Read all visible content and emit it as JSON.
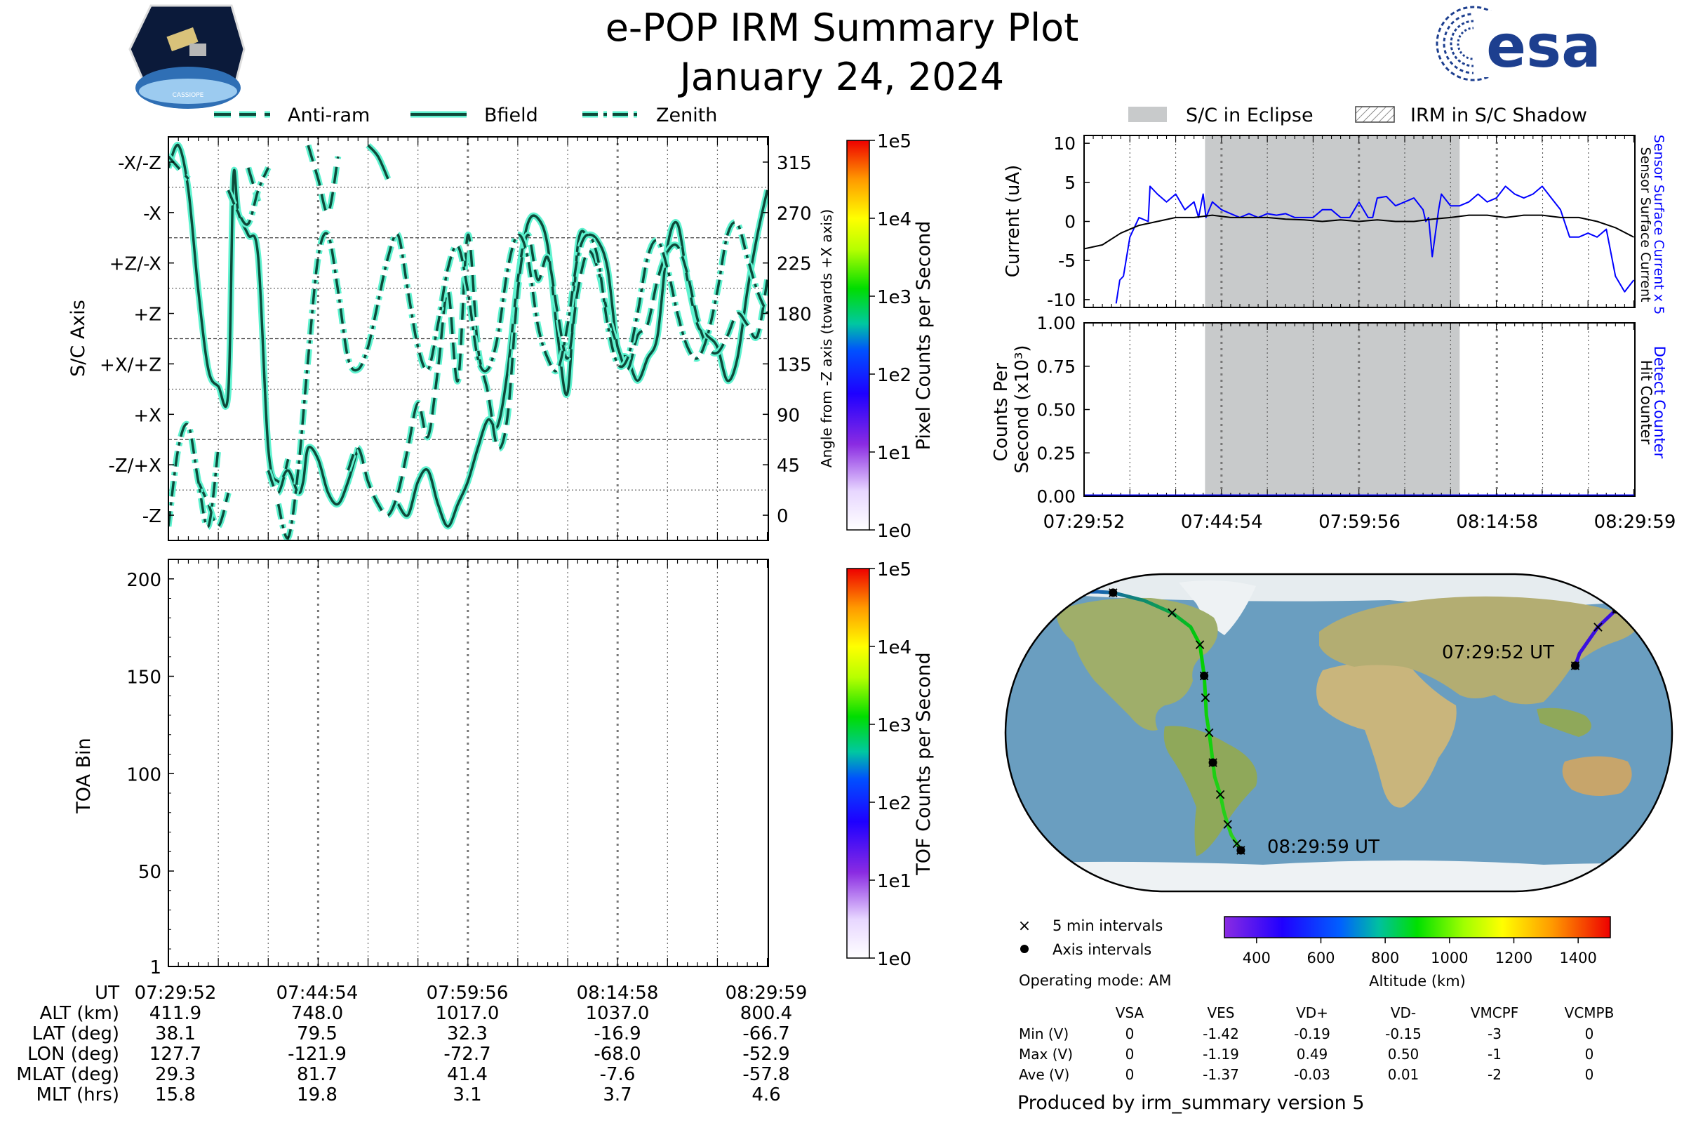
{
  "header": {
    "title": "e-POP IRM Summary Plot",
    "date": "January 24, 2024",
    "mission_logo_label": "CASSIOPE",
    "agency_logo_text": "esa"
  },
  "legend_left": {
    "items": [
      {
        "label": "Anti-ram",
        "style": "dashed"
      },
      {
        "label": "Bfield",
        "style": "solid"
      },
      {
        "label": "Zenith",
        "style": "dashdot"
      }
    ]
  },
  "legend_right": {
    "items": [
      {
        "label": "S/C in Eclipse",
        "style": "gray-fill"
      },
      {
        "label": "IRM in S/C Shadow",
        "style": "hatch"
      }
    ]
  },
  "colors": {
    "curve_glow": "#5ef2cf",
    "curve_core": "#0d4a3a",
    "eclipse": "#c8cacb",
    "current_scaled": "#0000ff",
    "current_raw": "#000000",
    "ocean": "#6a9ec0",
    "land": "#b5b27a"
  },
  "times": [
    "07:29:52",
    "07:44:54",
    "07:59:56",
    "08:14:58",
    "08:29:59"
  ],
  "chart_data": [
    {
      "id": "attitude",
      "type": "line",
      "ylabel": "S/C Axis",
      "ylabel_right": "Angle from -Z axis (towards +X axis)",
      "y_ticks_left": [
        "-Z",
        "-Z/+X",
        "+X",
        "+X/+Z",
        "+Z",
        "+Z/-X",
        "-X",
        "-X/-Z"
      ],
      "y_ticks_right": [
        0,
        45,
        90,
        135,
        180,
        225,
        270,
        315
      ],
      "ylim": [
        -22.5,
        337.5
      ],
      "xlim_min": [
        0,
        60.1
      ],
      "series": [
        {
          "name": "Bfield",
          "style": "solid",
          "x": [
            0,
            1,
            2,
            3,
            4,
            5,
            6,
            6.5,
            7,
            8,
            9,
            10,
            11,
            12,
            13,
            13.5,
            14,
            15,
            16,
            17,
            18,
            19,
            20,
            21,
            22,
            23,
            24,
            25,
            26,
            27,
            28,
            29,
            30,
            31,
            32,
            33,
            34,
            35,
            36,
            37,
            38,
            39,
            40,
            41,
            42,
            43,
            44,
            45,
            46,
            47,
            48,
            49,
            50,
            51,
            52,
            53,
            54,
            55,
            56,
            57,
            58,
            59,
            60
          ],
          "y": [
            310,
            330,
            290,
            200,
            130,
            115,
            110,
            300,
            270,
            250,
            230,
            60,
            30,
            40,
            20,
            30,
            60,
            50,
            20,
            10,
            30,
            60,
            330,
            320,
            300,
            10,
            0,
            30,
            40,
            10,
            -10,
            10,
            30,
            60,
            85,
            80,
            130,
            210,
            260,
            265,
            240,
            160,
            110,
            240,
            250,
            245,
            220,
            150,
            140,
            120,
            140,
            160,
            240,
            260,
            210,
            170,
            160,
            150,
            120,
            140,
            200,
            250,
            290
          ]
        },
        {
          "name": "Anti-ram",
          "style": "dashed",
          "x": [
            0,
            2,
            3,
            4,
            5,
            6,
            8,
            9,
            10,
            11,
            12,
            14,
            15,
            16,
            17,
            18,
            19,
            20,
            21,
            22,
            23,
            24,
            25,
            26,
            27,
            28,
            29,
            30,
            31,
            32,
            33,
            34,
            35,
            36,
            37,
            38,
            39,
            40,
            41,
            42,
            43,
            44,
            45,
            46,
            47,
            48,
            49,
            50,
            51,
            52,
            53,
            54,
            55,
            56,
            57,
            58,
            59,
            60
          ],
          "y": [
            320,
            300,
            30,
            10,
            -10,
            20,
            310,
            280,
            40,
            20,
            50,
            330,
            300,
            270,
            320,
            40,
            60,
            30,
            10,
            0,
            20,
            60,
            100,
            70,
            130,
            200,
            120,
            250,
            150,
            110,
            60,
            90,
            200,
            250,
            210,
            230,
            180,
            140,
            200,
            235,
            220,
            180,
            150,
            130,
            160,
            170,
            210,
            235,
            240,
            215,
            175,
            150,
            145,
            160,
            180,
            170,
            160,
            210
          ]
        },
        {
          "name": "Zenith",
          "style": "dashdot",
          "x": [
            0,
            1,
            2,
            3,
            4,
            5,
            6,
            7,
            8,
            9,
            10,
            11,
            12,
            13,
            14,
            15,
            16,
            17,
            18,
            19,
            20,
            21,
            22,
            23,
            24,
            25,
            26,
            27,
            28,
            29,
            30,
            31,
            32,
            33,
            34,
            35,
            36,
            37,
            38,
            39,
            40,
            41,
            42,
            43,
            44,
            45,
            46,
            47,
            48,
            49,
            50,
            51,
            52,
            53,
            54,
            55,
            56,
            57,
            58,
            59,
            60
          ],
          "y": [
            -10,
            60,
            80,
            30,
            -10,
            60,
            290,
            270,
            260,
            290,
            310,
            10,
            -20,
            40,
            140,
            230,
            250,
            200,
            140,
            130,
            150,
            190,
            230,
            250,
            200,
            150,
            130,
            170,
            220,
            240,
            200,
            140,
            130,
            160,
            220,
            250,
            230,
            170,
            140,
            130,
            170,
            230,
            250,
            230,
            170,
            135,
            140,
            180,
            230,
            245,
            220,
            180,
            150,
            140,
            160,
            200,
            250,
            260,
            230,
            200,
            180
          ]
        }
      ],
      "colorbar": {
        "label": "Pixel Counts per Second",
        "ticks": [
          "1e0",
          "1e1",
          "1e2",
          "1e3",
          "1e4",
          "1e5"
        ],
        "scale": "log"
      }
    },
    {
      "id": "toa",
      "type": "heatmap",
      "ylabel": "TOA Bin",
      "y_ticks": [
        1,
        50,
        100,
        150,
        200
      ],
      "ylim": [
        1,
        210
      ],
      "values": [],
      "colorbar": {
        "label": "TOF Counts per Second",
        "ticks": [
          "1e0",
          "1e1",
          "1e2",
          "1e3",
          "1e4",
          "1e5"
        ],
        "scale": "log"
      }
    },
    {
      "id": "current",
      "type": "line",
      "ylabel": "Current (uA)",
      "y_ticks": [
        -10,
        -5,
        0,
        5,
        10
      ],
      "ylim": [
        -11,
        11
      ],
      "eclipse_range_min": [
        13.2,
        41.0
      ],
      "series": [
        {
          "name": "Sensor Surface Current x 5",
          "color": "#0000ff",
          "x": [
            3.5,
            3.9,
            4.3,
            5.0,
            6.0,
            7.0,
            7.2,
            8.0,
            9.0,
            10.0,
            11.0,
            12.0,
            12.5,
            13.0,
            13.3,
            14.0,
            15.0,
            16.0,
            17.0,
            18.0,
            19.0,
            20.0,
            21.0,
            22.0,
            23.0,
            24.0,
            25.0,
            26.0,
            27.0,
            28.0,
            29.0,
            30.0,
            31.0,
            31.5,
            32.0,
            33.0,
            34.0,
            35.0,
            36.0,
            37.0,
            37.3,
            37.6,
            38.0,
            38.7,
            39.0,
            40.0,
            41.0,
            42.0,
            43.0,
            44.0,
            45.0,
            46.0,
            47.0,
            48.0,
            49.0,
            50.0,
            51.0,
            52.0,
            53.0,
            54.0,
            55.0,
            56.0,
            57.0,
            58.0,
            59.0,
            60.0
          ],
          "y": [
            -10.5,
            -7.5,
            -7.0,
            -2.0,
            0.5,
            0.0,
            4.5,
            3.5,
            2.5,
            3.5,
            1.5,
            2.5,
            0.5,
            3.5,
            0.5,
            2.5,
            1.5,
            1.0,
            0.5,
            1.0,
            0.5,
            1.0,
            0.8,
            1.0,
            0.5,
            0.5,
            0.5,
            1.5,
            1.5,
            0.5,
            0.5,
            2.5,
            0.5,
            0.5,
            3.0,
            3.2,
            2.0,
            2.5,
            3.0,
            1.5,
            0.0,
            0.5,
            -4.5,
            1.5,
            3.5,
            2.0,
            2.0,
            2.5,
            3.5,
            2.5,
            3.0,
            4.5,
            3.5,
            3.0,
            3.5,
            4.5,
            3.0,
            1.5,
            -2.0,
            -2.0,
            -1.5,
            -2.0,
            -1.0,
            -7.0,
            -9.0,
            -7.5
          ]
        },
        {
          "name": "Sensor Surface Current",
          "color": "#000000",
          "x": [
            0,
            2,
            4,
            6,
            8,
            10,
            12,
            14,
            16,
            18,
            20,
            22,
            24,
            26,
            28,
            30,
            32,
            34,
            36,
            38,
            40,
            42,
            44,
            46,
            48,
            50,
            52,
            54,
            56,
            58,
            60
          ],
          "y": [
            -3.5,
            -3.0,
            -1.5,
            -0.5,
            0.0,
            0.5,
            0.5,
            0.8,
            0.5,
            0.5,
            0.5,
            0.3,
            0.2,
            0.0,
            0.2,
            0.0,
            0.2,
            0.0,
            0.0,
            0.3,
            0.5,
            0.8,
            0.8,
            0.5,
            0.8,
            0.8,
            0.5,
            0.5,
            0.0,
            -0.8,
            -2.0
          ]
        }
      ]
    },
    {
      "id": "counts",
      "type": "line",
      "ylabel": "Counts Per Second (x10³)",
      "y_ticks": [
        "0.00",
        "0.25",
        "0.50",
        "0.75",
        "1.00"
      ],
      "ylim": [
        0,
        1
      ],
      "series": [
        {
          "name": "Detect Counter",
          "color": "#0000ff",
          "x": [
            0,
            60
          ],
          "y": [
            0,
            0
          ]
        },
        {
          "name": "Hit Counter",
          "color": "#000000",
          "x": [
            0,
            60
          ],
          "y": [
            0,
            0
          ]
        }
      ]
    },
    {
      "id": "track",
      "type": "scatter",
      "x_label": "Longitude",
      "y_label": "Latitude",
      "x": [
        127.7,
        130,
        140,
        150,
        165,
        180,
        -165,
        -150,
        -140,
        -130,
        -121.9,
        -105,
        -90,
        -80,
        -75,
        -72.7,
        -72,
        -71.5,
        -70,
        -69,
        -68.0,
        -67,
        -64,
        -62,
        -60,
        -58,
        -55,
        -52.9
      ],
      "y": [
        38.1,
        45,
        60,
        70,
        75,
        77,
        79,
        80,
        80,
        80,
        79.5,
        75,
        68,
        60,
        50,
        32.3,
        20,
        10,
        0,
        -8,
        -16.9,
        -25,
        -35,
        -45,
        -52,
        -58,
        -63,
        -66.7
      ],
      "start_label": "07:29:52 UT",
      "end_label": "08:29:59 UT",
      "colorbar": {
        "label": "Altitude (km)",
        "ticks": [
          400,
          600,
          800,
          1000,
          1200,
          1400
        ],
        "range": [
          300,
          1500
        ]
      }
    }
  ],
  "map_legend": {
    "five_min": "5 min intervals",
    "axis": "Axis intervals"
  },
  "ephemeris": {
    "rows": [
      {
        "label": "UT",
        "values": [
          "07:29:52",
          "07:44:54",
          "07:59:56",
          "08:14:58",
          "08:29:59"
        ]
      },
      {
        "label": "ALT (km)",
        "values": [
          "411.9",
          "748.0",
          "1017.0",
          "1037.0",
          "800.4"
        ]
      },
      {
        "label": "LAT (deg)",
        "values": [
          "38.1",
          "79.5",
          "32.3",
          "-16.9",
          "-66.7"
        ]
      },
      {
        "label": "LON (deg)",
        "values": [
          "127.7",
          "-121.9",
          "-72.7",
          "-68.0",
          "-52.9"
        ]
      },
      {
        "label": "MLAT (deg)",
        "values": [
          "29.3",
          "81.7",
          "41.4",
          "-7.6",
          "-57.8"
        ]
      },
      {
        "label": "MLT (hrs)",
        "values": [
          "15.8",
          "19.8",
          "3.1",
          "3.7",
          "4.6"
        ]
      }
    ]
  },
  "operating_mode": "Operating mode: AM",
  "voltage_table": {
    "columns": [
      "VSA",
      "VES",
      "VD+",
      "VD-",
      "VMCPF",
      "VCMPB"
    ],
    "rows": [
      {
        "label": "Min (V)",
        "values": [
          "0",
          "-1.42",
          "-0.19",
          "-0.15",
          "-3",
          "0"
        ]
      },
      {
        "label": "Max (V)",
        "values": [
          "0",
          "-1.19",
          "0.49",
          "0.50",
          "-1",
          "0"
        ]
      },
      {
        "label": "Ave (V)",
        "values": [
          "0",
          "-1.37",
          "-0.03",
          "0.01",
          "-2",
          "0"
        ]
      }
    ]
  },
  "footer": "Produced by irm_summary version 5"
}
